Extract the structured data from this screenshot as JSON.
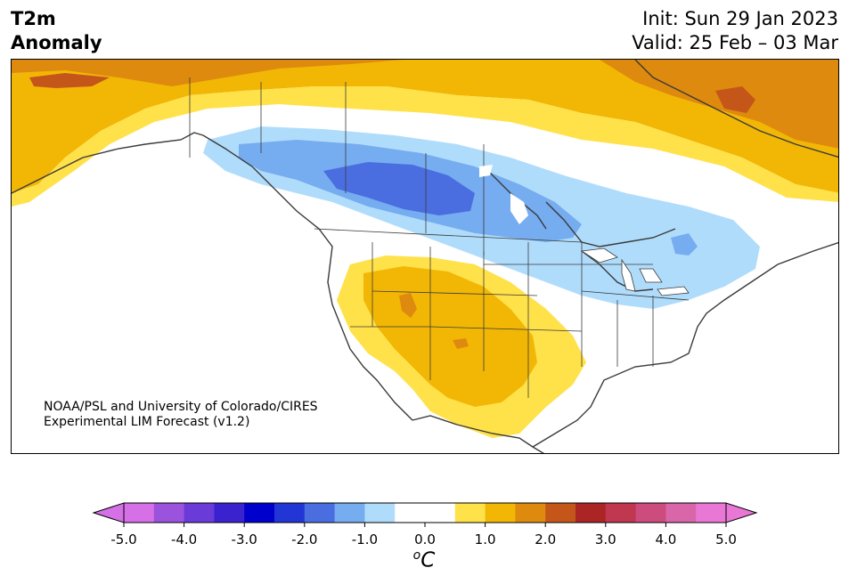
{
  "header": {
    "title_line1": "T2m",
    "title_line2": "Anomaly",
    "init_label": "Init: Sun 29 Jan 2023",
    "valid_label": "Valid: 25 Feb – 03 Mar"
  },
  "credit": {
    "line1": "NOAA/PSL and University of Colorado/CIRES",
    "line2": "Experimental LIM Forecast (v1.2)"
  },
  "colorbar": {
    "ticks": [
      "-5.0",
      "-4.0",
      "-3.0",
      "-2.0",
      "-1.0",
      "0.0",
      "1.0",
      "2.0",
      "3.0",
      "4.0",
      "5.0"
    ],
    "unit_base": "C",
    "unit_sup": "o",
    "colors": [
      "#d670e6",
      "#9b52dd",
      "#6a3bd8",
      "#3a22cf",
      "#0000cc",
      "#2236d6",
      "#4a6ee0",
      "#76acf0",
      "#b0dcfc",
      "#ffffff",
      "#ffffff",
      "#ffe14a",
      "#f2b705",
      "#dd8a0e",
      "#c4561a",
      "#ac2525",
      "#c03750",
      "#cc4c7d",
      "#d966a9",
      "#e877d6"
    ],
    "under_color": "#d670e6",
    "over_color": "#e877d6"
  }
}
